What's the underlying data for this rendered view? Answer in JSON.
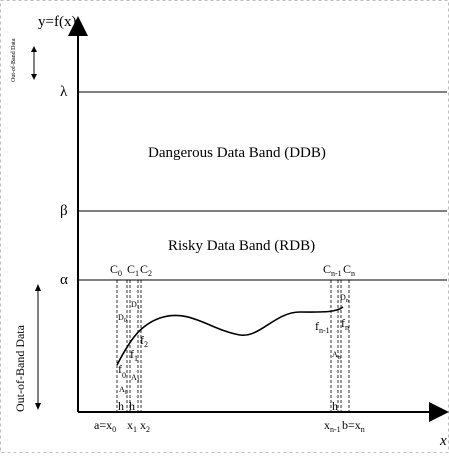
{
  "axes": {
    "y_label": "y=f(x)",
    "x_label": "x"
  },
  "levels": {
    "lambda": "λ",
    "beta": "β",
    "alpha": "α"
  },
  "bands": {
    "dangerous": "Dangerous Data Band (DDB)",
    "risky": "Risky Data Band (RDB)",
    "out_of_band_top": "Out-of-Band Data",
    "out_of_band_left": "Out-of-Band Data"
  },
  "columns": {
    "c0": "C",
    "c0_sub": "0",
    "c1": "C",
    "c1_sub": "1",
    "c2": "C",
    "c2_sub": "2",
    "cn1": "C",
    "cn1_sub": "n-1",
    "cn": "C",
    "cn_sub": "n"
  },
  "regions": {
    "d0": "D",
    "d0_sub": "0",
    "d1": "D",
    "d1_sub": "1",
    "dn": "D",
    "dn_sub": "n",
    "a0": "A",
    "a0_sub": "0",
    "a1": "A",
    "a1_sub": "1",
    "an": "A",
    "an_sub": "n"
  },
  "function_points": {
    "f0": "f",
    "f0_sub": "0",
    "f1": "f",
    "f1_sub": "1",
    "f2": "f",
    "f2_sub": "2",
    "fn1": "f",
    "fn1_sub": "n-1",
    "fn": "f",
    "fn_sub": "n"
  },
  "h_labels": {
    "h1": "h",
    "h2": "h",
    "h3": "h"
  },
  "x_ticks": {
    "left_a": "a=x",
    "left_a_sub": "0",
    "x1": "x",
    "x1_sub": "1",
    "x2": "x",
    "x2_sub": "2",
    "right_xn1": "x",
    "right_xn1_sub": "n-1",
    "right_b": "b=x",
    "right_b_sub": "n"
  }
}
